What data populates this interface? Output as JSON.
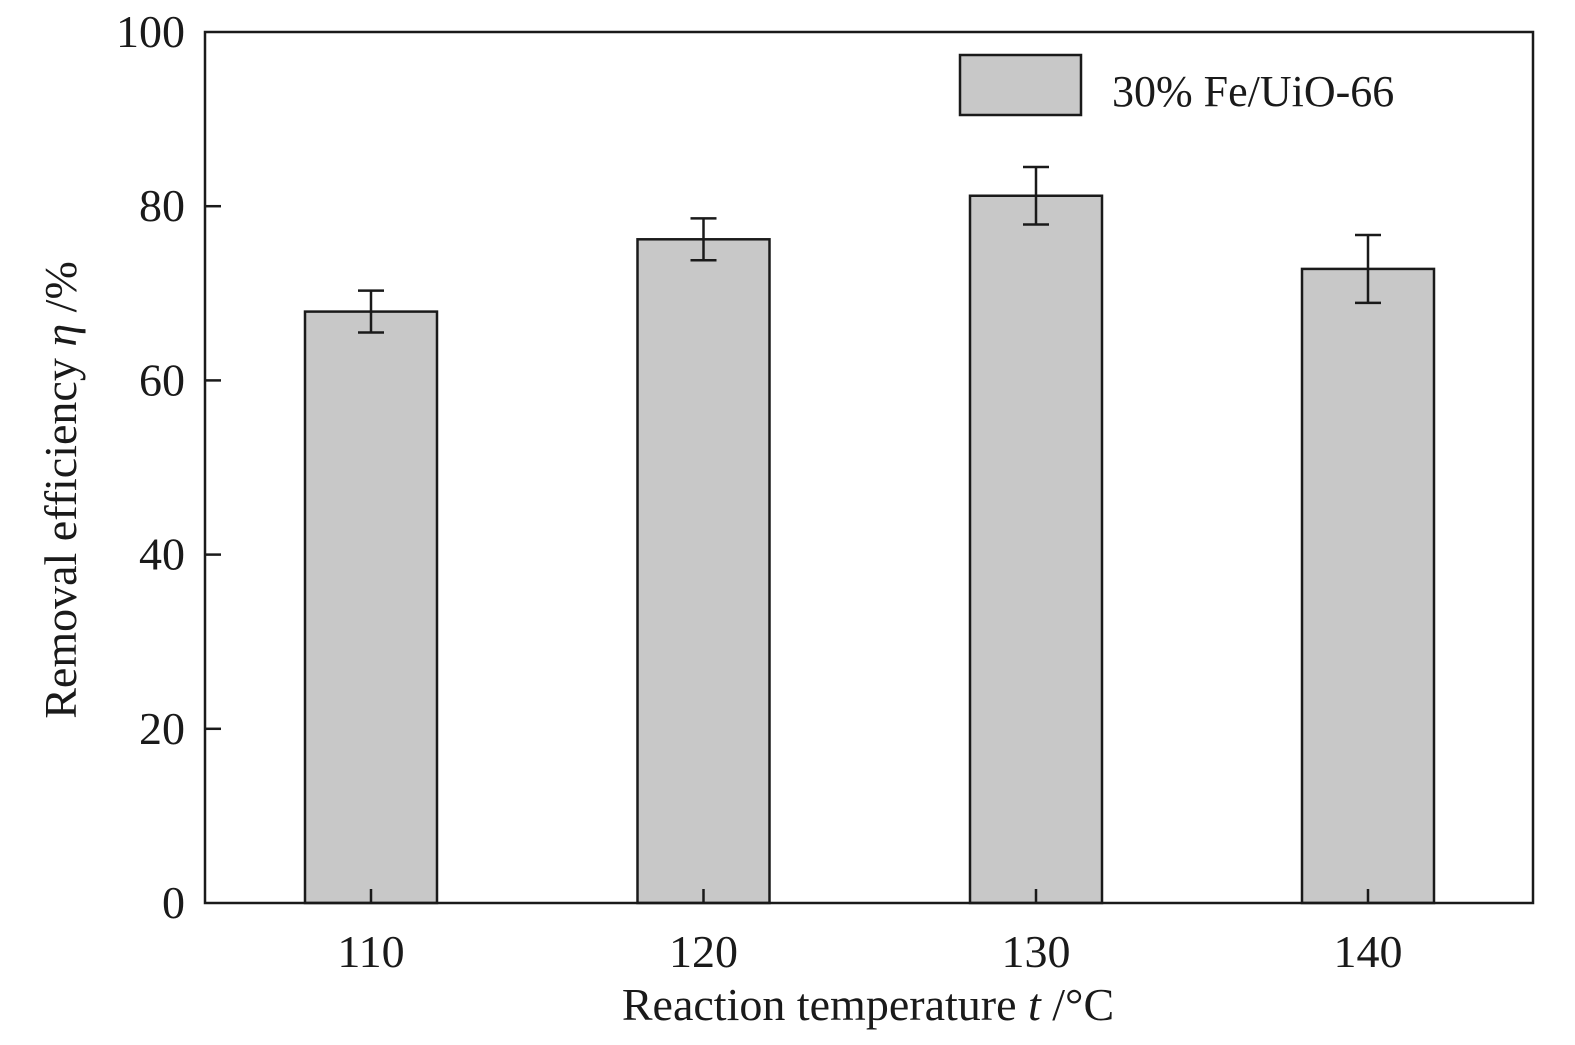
{
  "chart_data": {
    "type": "bar",
    "categories": [
      "110",
      "120",
      "130",
      "140"
    ],
    "series": [
      {
        "name": "30% Fe/UiO-66",
        "values": [
          67.9,
          76.2,
          81.2,
          72.8
        ],
        "errors": [
          2.4,
          2.4,
          3.3,
          3.9
        ],
        "color": "#c8c8c8"
      }
    ],
    "xlabel": {
      "prefix": "Reaction temperature ",
      "symbol": "t",
      "unit": " /°C"
    },
    "ylabel": {
      "prefix": "Removal efficiency ",
      "symbol": "η",
      "unit": " /%"
    },
    "ylim": [
      0,
      100
    ],
    "yticks": [
      "0",
      "20",
      "40",
      "60",
      "80",
      "100"
    ],
    "grid": false,
    "legend_position": "top-right"
  }
}
